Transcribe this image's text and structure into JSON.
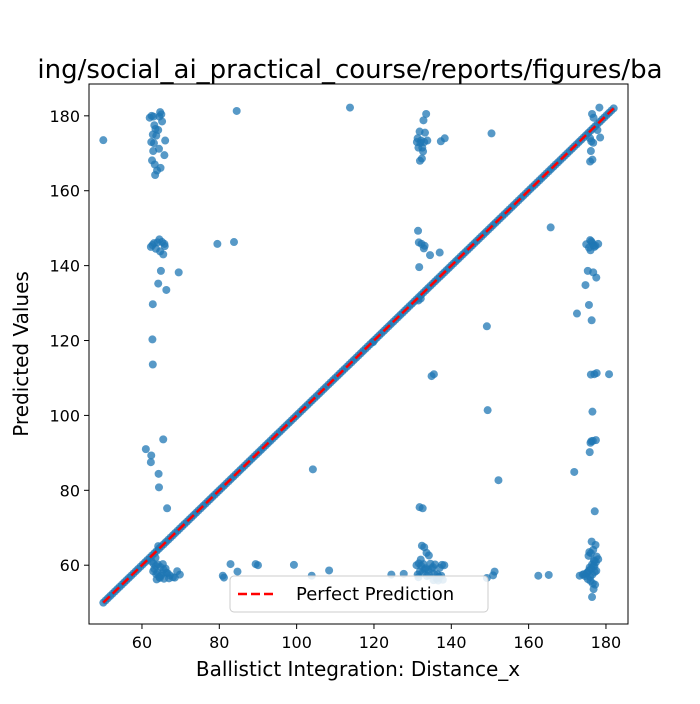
{
  "chart_data": {
    "type": "scatter",
    "title": "ing/social_ai_practical_course/reports/figures/ba",
    "xlabel": "Ballistict Integration: Distance_x",
    "ylabel": "Predicted Values",
    "xlim": [
      46.3,
      185.7
    ],
    "ylim": [
      44.3,
      188.5
    ],
    "xticks": [
      60,
      80,
      100,
      120,
      140,
      160,
      180
    ],
    "yticks": [
      60,
      80,
      100,
      120,
      140,
      160,
      180
    ],
    "grid": false,
    "legend": {
      "position": "lower center",
      "entries": [
        "Perfect Prediction"
      ]
    },
    "colors": {
      "points": "#1f77b4",
      "reference_line": "#ff0000"
    },
    "reference_line": {
      "name": "Perfect Prediction",
      "x": [
        50,
        182
      ],
      "y": [
        50,
        182
      ],
      "style": "dashed"
    },
    "diagonal_cluster": {
      "x_start": 50,
      "x_end": 182,
      "step": 0.6
    },
    "series": [
      {
        "x": [
          50,
          62,
          62.5,
          63,
          63.2,
          63.5,
          62.8,
          63.7,
          64.5,
          65,
          64.7,
          65.2,
          64.2,
          66,
          62.4,
          63.1,
          62.9,
          64.4,
          65.8,
          62.6,
          63.3,
          63.9,
          64.8,
          63.4,
          62.3,
          62.7,
          63.1,
          64,
          64.5,
          65.2,
          65.8,
          63.6,
          64.7,
          65.9,
          65.5,
          69.5,
          64.9,
          66.3,
          64.2,
          62.8,
          62.7,
          62.8,
          61,
          62.4,
          62.3,
          65.5,
          64.3,
          64.4,
          66.5,
          64.2,
          63.5,
          62.5,
          63,
          63.6,
          64.1,
          64.8,
          65.6,
          66.3,
          67.2,
          68.5,
          69.8,
          62.9,
          63.7,
          64.5,
          65.3,
          66.1,
          67,
          63.2,
          64,
          64.9,
          65.7,
          66.6,
          68,
          69.1,
          63.8,
          64.6,
          65.4,
          79.5,
          84.5,
          83.8,
          80.9,
          81.2,
          82.9,
          84.7,
          89.4,
          90,
          99.3,
          103.9,
          104.2,
          108.4,
          113.8,
          119.8,
          124.5,
          127.7,
          131.1,
          131.5,
          132,
          132.5,
          133,
          132.2,
          131.8,
          132.8,
          133.5,
          132.4,
          131.3,
          133.2,
          131.9,
          132.7,
          133.8,
          131.6,
          132.3,
          133.1,
          131.4,
          132.9,
          134.5,
          137,
          137.3,
          138.3,
          131.7,
          132.1,
          131.5,
          135.5,
          134.9,
          131.8,
          132.6,
          131,
          131.6,
          132.2,
          132.8,
          133.4,
          134,
          134.6,
          135.2,
          135.8,
          136.4,
          137,
          137.6,
          138.2,
          131.3,
          131.9,
          132.5,
          133.1,
          133.7,
          134.3,
          135,
          135.6,
          136.2,
          136.8,
          137.4,
          132.4,
          133,
          133.6,
          134.2,
          135.4,
          136.6,
          137.8,
          131.5,
          132.1,
          149.2,
          149.4,
          150.4,
          150.8,
          152.2,
          149.2,
          151.2,
          162.5,
          165.2,
          165.7,
          172.5,
          171.8,
          174.9,
          176.2,
          175.9,
          176.5,
          176.8,
          177.3,
          175.6,
          176,
          177,
          178,
          175.3,
          176.7,
          177.5,
          174.7,
          175.6,
          176.3,
          177,
          177.6,
          176.1,
          180.8,
          176.5,
          176.2,
          177.4,
          176,
          176.6,
          175.8,
          177.1,
          178.3,
          176.4,
          176.8,
          175.9,
          176.7,
          176.1,
          176.5,
          175.9,
          176.2,
          177.8,
          178.5,
          173.2,
          174,
          174.6,
          175.2,
          175.8,
          176.4,
          177,
          177.6,
          174.3,
          175,
          175.6,
          176.2,
          176.8,
          177.4,
          178,
          175.3,
          175.9,
          176.5,
          177.1,
          176,
          176.6,
          177.2,
          175.5,
          176.1,
          176.7,
          177.3,
          176.3,
          176.9,
          175.7,
          177,
          177.5,
          176.4,
          176.8
        ],
        "y": [
          173.5,
          179.5,
          180,
          179.8,
          177.5,
          176.5,
          175,
          174.7,
          179.8,
          180.4,
          181,
          178.5,
          176.2,
          173.4,
          173,
          172.7,
          170.6,
          171.2,
          169.5,
          168.1,
          167,
          165.4,
          166.1,
          164.2,
          145,
          145.5,
          146,
          146.2,
          147,
          146.3,
          145.8,
          144.5,
          143.8,
          145.2,
          143,
          138.2,
          138.6,
          133.5,
          135.2,
          129.7,
          120.3,
          113.6,
          91,
          89.3,
          87.5,
          93.6,
          84.4,
          80.8,
          75.2,
          65.1,
          62,
          61,
          60.4,
          59.8,
          60.2,
          59.5,
          58.8,
          58,
          57.3,
          56.7,
          57.5,
          58.4,
          57.6,
          56.9,
          57.8,
          59.1,
          56.5,
          59,
          58,
          57.2,
          56.4,
          57.9,
          56.8,
          58.4,
          56.2,
          56.6,
          60.3,
          145.8,
          181.3,
          146.3,
          57.2,
          56.7,
          60.3,
          58.3,
          60.3,
          60,
          60.1,
          57.2,
          85.6,
          58.6,
          182.2,
          119.6,
          57.5,
          57.7,
          173,
          171.5,
          172.8,
          171.5,
          173,
          173.4,
          175.8,
          178.8,
          180.5,
          168.6,
          174,
          175.5,
          168,
          170.5,
          173.4,
          146.2,
          145.8,
          145.3,
          149.3,
          144.6,
          142.8,
          143.5,
          173.2,
          174,
          139.6,
          131.2,
          130.7,
          111,
          110.5,
          75.5,
          75.2,
          60,
          60.5,
          59.8,
          60.3,
          59.2,
          58.8,
          60.4,
          59.5,
          60.2,
          57.6,
          59.3,
          60.1,
          60,
          57.5,
          58.4,
          57.9,
          58.9,
          57.1,
          57.3,
          59.1,
          57.7,
          56.4,
          56.9,
          57.2,
          65.2,
          64.8,
          63.3,
          62.6,
          56,
          55.9,
          56.1,
          56.8,
          61.5,
          123.8,
          101.4,
          175.3,
          57.3,
          82.7,
          56.6,
          58.3,
          57.2,
          57.4,
          150.2,
          127.2,
          84.9,
          145.7,
          146.5,
          146.8,
          146,
          145.4,
          145.3,
          144.8,
          144.1,
          145,
          145.8,
          138.6,
          138.2,
          136.8,
          134.8,
          129.5,
          125.4,
          111,
          111.3,
          110.9,
          111,
          101,
          93.1,
          93.4,
          92.7,
          93.2,
          90.2,
          74.4,
          182.2,
          180.5,
          179.5,
          174,
          172.8,
          170.6,
          168.3,
          167.8,
          173.2,
          176.2,
          174.2,
          57.2,
          57.5,
          57.1,
          58.1,
          59.4,
          60.2,
          61.1,
          62.3,
          57.6,
          57.8,
          58.6,
          59,
          59.9,
          60.8,
          61.6,
          56.3,
          56.9,
          57.5,
          58.2,
          55.8,
          55.1,
          54.8,
          62.5,
          63.2,
          64.1,
          65.4,
          66.3,
          61.3,
          63.5,
          59.7,
          58.5,
          51.5,
          53.6
        ]
      }
    ]
  }
}
